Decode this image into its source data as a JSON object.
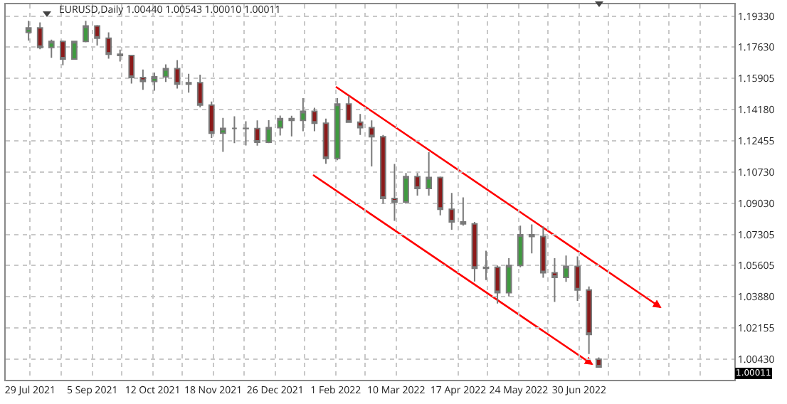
{
  "chart_data": {
    "type": "candlestick",
    "title": "EURUSD,Daily 1.00440 1.00543 1.00010 1.00011",
    "x": [
      "2021-07-28",
      "2021-08-04",
      "2021-08-11",
      "2021-08-18",
      "2021-08-25",
      "2021-09-01",
      "2021-09-08",
      "2021-09-15",
      "2021-09-22",
      "2021-09-29",
      "2021-10-06",
      "2021-10-13",
      "2021-10-20",
      "2021-10-27",
      "2021-11-03",
      "2021-11-10",
      "2021-11-17",
      "2021-11-24",
      "2021-12-01",
      "2021-12-08",
      "2021-12-15",
      "2021-12-22",
      "2021-12-29",
      "2022-01-05",
      "2022-01-12",
      "2022-01-19",
      "2022-01-26",
      "2022-02-02",
      "2022-02-09",
      "2022-02-16",
      "2022-02-23",
      "2022-03-02",
      "2022-03-09",
      "2022-03-16",
      "2022-03-23",
      "2022-03-30",
      "2022-04-06",
      "2022-04-13",
      "2022-04-20",
      "2022-04-27",
      "2022-05-04",
      "2022-05-11",
      "2022-05-18",
      "2022-05-25",
      "2022-06-01",
      "2022-06-08",
      "2022-06-15",
      "2022-06-22",
      "2022-06-29",
      "2022-07-06",
      "2022-07-12"
    ],
    "ohlc": [
      [
        1.1845,
        1.1909,
        1.18,
        1.187
      ],
      [
        1.187,
        1.19,
        1.1752,
        1.1762
      ],
      [
        1.1762,
        1.1805,
        1.1705,
        1.1795
      ],
      [
        1.1795,
        1.18,
        1.1664,
        1.1698
      ],
      [
        1.1698,
        1.1795,
        1.1697,
        1.1795
      ],
      [
        1.1795,
        1.1909,
        1.179,
        1.188
      ],
      [
        1.188,
        1.1885,
        1.1773,
        1.1813
      ],
      [
        1.1813,
        1.1845,
        1.17,
        1.1725
      ],
      [
        1.1725,
        1.175,
        1.1684,
        1.1718
      ],
      [
        1.1718,
        1.172,
        1.1563,
        1.1596
      ],
      [
        1.1596,
        1.164,
        1.1529,
        1.1575
      ],
      [
        1.1575,
        1.1624,
        1.1524,
        1.16
      ],
      [
        1.16,
        1.1669,
        1.1572,
        1.1645
      ],
      [
        1.1645,
        1.1692,
        1.1535,
        1.156
      ],
      [
        1.156,
        1.1617,
        1.1513,
        1.1568
      ],
      [
        1.1568,
        1.1612,
        1.1432,
        1.1444
      ],
      [
        1.1444,
        1.1464,
        1.1263,
        1.1289
      ],
      [
        1.1289,
        1.1374,
        1.1186,
        1.1316
      ],
      [
        1.1316,
        1.1383,
        1.1235,
        1.1316
      ],
      [
        1.1316,
        1.1355,
        1.1222,
        1.1315
      ],
      [
        1.1315,
        1.136,
        1.1221,
        1.1239
      ],
      [
        1.1239,
        1.1361,
        1.1235,
        1.132
      ],
      [
        1.132,
        1.1386,
        1.1277,
        1.137
      ],
      [
        1.137,
        1.1385,
        1.1272,
        1.136
      ],
      [
        1.136,
        1.1482,
        1.13,
        1.141
      ],
      [
        1.141,
        1.143,
        1.13,
        1.1344
      ],
      [
        1.1344,
        1.137,
        1.1121,
        1.115
      ],
      [
        1.115,
        1.1483,
        1.114,
        1.145
      ],
      [
        1.145,
        1.1495,
        1.135,
        1.135
      ],
      [
        1.135,
        1.1395,
        1.128,
        1.132
      ],
      [
        1.132,
        1.136,
        1.1106,
        1.127
      ],
      [
        1.127,
        1.128,
        1.09,
        1.093
      ],
      [
        1.093,
        1.112,
        1.0806,
        1.091
      ],
      [
        1.091,
        1.107,
        1.09,
        1.105
      ],
      [
        1.105,
        1.107,
        1.0945,
        1.0985
      ],
      [
        1.0985,
        1.1185,
        1.0945,
        1.1045
      ],
      [
        1.1045,
        1.105,
        1.0837,
        1.087
      ],
      [
        1.087,
        1.096,
        1.0757,
        1.08
      ],
      [
        1.08,
        1.0936,
        1.078,
        1.079
      ],
      [
        1.079,
        1.08,
        1.0472,
        1.0545
      ],
      [
        1.0545,
        1.0642,
        1.048,
        1.055
      ],
      [
        1.055,
        1.056,
        1.035,
        1.041
      ],
      [
        1.041,
        1.06,
        1.039,
        1.056
      ],
      [
        1.056,
        1.078,
        1.055,
        1.073
      ],
      [
        1.073,
        1.0787,
        1.0627,
        1.072
      ],
      [
        1.072,
        1.0775,
        1.0493,
        1.052
      ],
      [
        1.052,
        1.06,
        1.0359,
        1.0495
      ],
      [
        1.0495,
        1.0615,
        1.047,
        1.0555
      ],
      [
        1.0555,
        1.061,
        1.0365,
        1.0425
      ],
      [
        1.0425,
        1.0445,
        1.0072,
        1.018
      ],
      [
        1.0044,
        1.0054,
        1.0001,
        1.0001
      ]
    ],
    "annotations": [
      "1.00011"
    ],
    "xlim": [
      "2021-07-14",
      "2022-10-03"
    ],
    "xticks": [
      {
        "value": "2021-07-29",
        "label": "29 Jul 2021"
      },
      {
        "value": "2021-08-17",
        "label": null
      },
      {
        "value": "2021-09-05",
        "label": "5 Sep 2021"
      },
      {
        "value": "2021-09-23",
        "label": null
      },
      {
        "value": "2021-10-12",
        "label": "12 Oct 2021"
      },
      {
        "value": "2021-10-30",
        "label": null
      },
      {
        "value": "2021-11-18",
        "label": "18 Nov 2021"
      },
      {
        "value": "2021-12-07",
        "label": null
      },
      {
        "value": "2021-12-26",
        "label": "26 Dec 2021"
      },
      {
        "value": "2022-01-13",
        "label": null
      },
      {
        "value": "2022-02-01",
        "label": "1 Feb 2022"
      },
      {
        "value": "2022-02-19",
        "label": null
      },
      {
        "value": "2022-03-10",
        "label": "10 Mar 2022"
      },
      {
        "value": "2022-04-17",
        "label": "17 Apr 2022"
      },
      {
        "value": "2022-05-05",
        "label": null
      },
      {
        "value": "2022-05-24",
        "label": "24 May 2022"
      },
      {
        "value": "2022-06-11",
        "label": null
      },
      {
        "value": "2022-06-30",
        "label": "30 Jun 2022"
      },
      {
        "value": "2022-07-18",
        "label": null
      },
      {
        "value": "2022-08-06",
        "label": null
      },
      {
        "value": "2022-08-24",
        "label": null
      },
      {
        "value": "2022-09-12",
        "label": null
      }
    ],
    "ylim": [
      0.993,
      1.2
    ],
    "yticks": [
      {
        "value": 1.0043,
        "label": "1.00430"
      },
      {
        "value": 1.02155,
        "label": "1.02155"
      },
      {
        "value": 1.0388,
        "label": "1.03880"
      },
      {
        "value": 1.05605,
        "label": "1.05605"
      },
      {
        "value": 1.07305,
        "label": "1.07305"
      },
      {
        "value": 1.0903,
        "label": "1.09030"
      },
      {
        "value": 1.1073,
        "label": "1.10730"
      },
      {
        "value": 1.12455,
        "label": "1.12455"
      },
      {
        "value": 1.1418,
        "label": "1.14180"
      },
      {
        "value": 1.15905,
        "label": "1.15905"
      },
      {
        "value": 1.1763,
        "label": "1.17630"
      },
      {
        "value": 1.1933,
        "label": "1.19330"
      }
    ],
    "grid": true
  }
}
